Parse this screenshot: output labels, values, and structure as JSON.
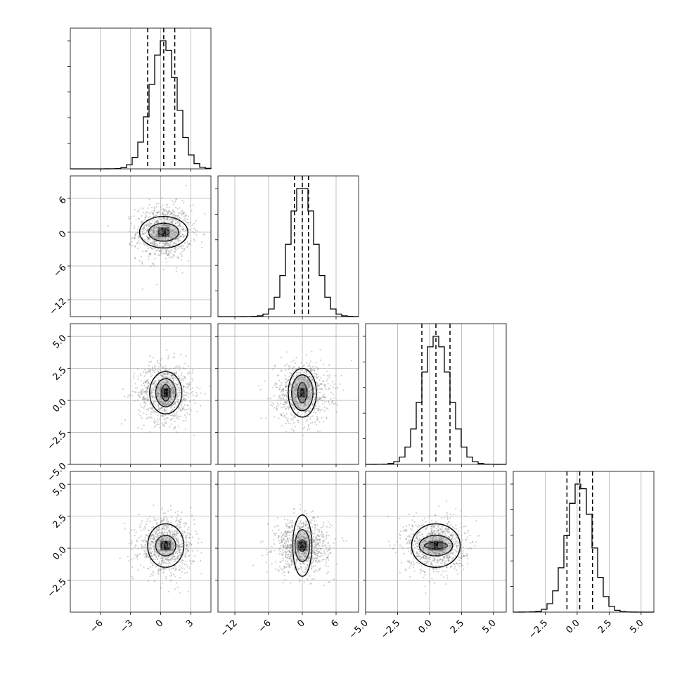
{
  "chart_data": {
    "type": "corner",
    "variables": [
      {
        "name": "",
        "range": [
          -9,
          5
        ],
        "ticks": [
          -6,
          -3,
          0,
          3
        ],
        "tick_labels": [
          "−6",
          "−3",
          "0",
          "3"
        ],
        "mean": 0.3,
        "sd": 1.3,
        "quantiles": [
          -1.3,
          0.3,
          1.4
        ]
      },
      {
        "name": "",
        "range": [
          -15,
          10
        ],
        "ticks": [
          -12,
          -6,
          0,
          6
        ],
        "tick_labels": [
          "−12",
          "−6",
          "0",
          "6"
        ],
        "mean": 0.0,
        "sd": 2.3,
        "quantiles": [
          -1.4,
          0.0,
          1.1
        ]
      },
      {
        "name": "",
        "range": [
          -5,
          6
        ],
        "ticks": [
          -5.0,
          -2.5,
          0.0,
          2.5,
          5.0
        ],
        "tick_labels": [
          "−5.0",
          "−2.5",
          "0.0",
          "2.5",
          "5.0"
        ],
        "mean": 0.5,
        "sd": 1.1,
        "quantiles": [
          -0.6,
          0.5,
          1.6
        ]
      },
      {
        "name": "",
        "range": [
          -5,
          6
        ],
        "ticks": [
          -2.5,
          0.0,
          2.5,
          5.0
        ],
        "tick_labels": [
          "−2.5",
          "0.0",
          "2.5",
          "5.0"
        ],
        "mean": 0.2,
        "sd": 1.0,
        "quantiles": [
          -0.8,
          0.2,
          1.2
        ]
      }
    ],
    "histograms": [
      {
        "variable": 0,
        "bins": 25,
        "range": [
          -9,
          5
        ],
        "peak_x": 0.3
      },
      {
        "variable": 1,
        "bins": 25,
        "range": [
          -15,
          10
        ],
        "peak_x": 0.0
      },
      {
        "variable": 2,
        "bins": 25,
        "range": [
          -5,
          6
        ],
        "peak_x": 0.5
      },
      {
        "variable": 3,
        "bins": 25,
        "range": [
          -5,
          6
        ],
        "peak_x": 0.2
      }
    ],
    "pairs": [
      {
        "x": 0,
        "y": 1,
        "center": [
          0.3,
          0.0
        ],
        "contour_half_widths": [
          [
            0.55,
            0.5
          ],
          [
            1.5,
            1.6
          ],
          [
            2.4,
            2.8
          ]
        ]
      },
      {
        "x": 0,
        "y": 2,
        "center": [
          0.5,
          0.6
        ],
        "contour_half_widths": [
          [
            0.4,
            0.65
          ],
          [
            1.0,
            1.1
          ],
          [
            1.6,
            1.65
          ]
        ]
      },
      {
        "x": 1,
        "y": 2,
        "center": [
          0.0,
          0.6
        ],
        "contour_half_widths": [
          [
            0.8,
            0.8
          ],
          [
            1.9,
            1.4
          ],
          [
            2.5,
            1.9
          ]
        ]
      },
      {
        "x": 0,
        "y": 3,
        "center": [
          0.5,
          0.2
        ],
        "contour_half_widths": [
          [
            0.45,
            0.3
          ],
          [
            1.0,
            0.8
          ],
          [
            1.8,
            1.7
          ]
        ]
      },
      {
        "x": 1,
        "y": 3,
        "center": [
          0.0,
          0.2
        ],
        "contour_half_widths": [
          [
            0.6,
            0.45
          ],
          [
            1.3,
            1.25
          ],
          [
            1.7,
            2.4
          ]
        ]
      },
      {
        "x": 2,
        "y": 3,
        "center": [
          0.5,
          0.2
        ],
        "contour_half_widths": [
          [
            0.9,
            0.25
          ],
          [
            1.3,
            0.8
          ],
          [
            1.9,
            1.7
          ]
        ]
      }
    ],
    "grid": true,
    "quantile_lines": "dashed"
  }
}
